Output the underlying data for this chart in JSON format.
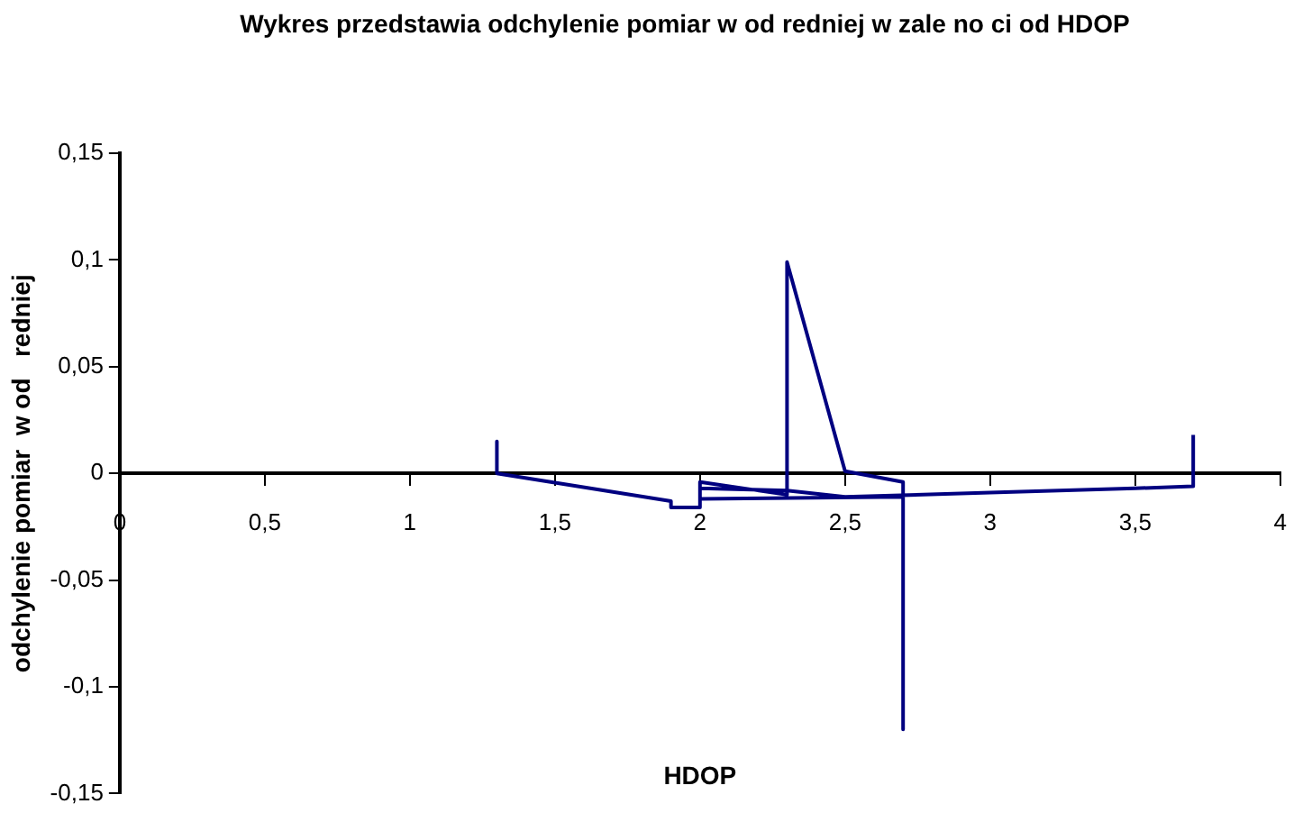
{
  "chart_data": {
    "type": "line",
    "title": "Wykres przedstawia odchylenie pomiar  w od   redniej w zale  no  ci od HDOP",
    "xlabel": "HDOP",
    "ylabel": "odchylenie pomiar  w od   redniej",
    "series": [
      {
        "color": "#000080",
        "x": [
          1.3,
          1.3,
          1.9,
          1.9,
          2.0,
          2.0,
          2.3,
          2.3,
          2.5,
          2.7,
          2.7,
          2.7,
          2.0,
          2.0,
          2.3,
          2.5,
          3.0,
          3.5,
          3.7,
          3.7
        ],
        "values": [
          0.015,
          0.0,
          -0.013,
          -0.016,
          -0.016,
          -0.004,
          -0.01,
          0.099,
          0.001,
          -0.004,
          -0.12,
          -0.011,
          -0.012,
          -0.007,
          -0.008,
          -0.011,
          -0.009,
          -0.007,
          -0.006,
          0.018
        ]
      }
    ],
    "xlim": [
      0,
      4
    ],
    "xticks": [
      0,
      {
        "value": 0.5,
        "label": "0,5"
      },
      1,
      {
        "value": 1.5,
        "label": "1,5"
      },
      2,
      {
        "value": 2.5,
        "label": "2,5"
      },
      3,
      {
        "value": 3.5,
        "label": "3,5"
      },
      4
    ],
    "ylim": [
      -0.15,
      0.15
    ],
    "yticks": [
      {
        "value": -0.15,
        "label": "-0,15"
      },
      {
        "value": -0.1,
        "label": "-0,1"
      },
      {
        "value": -0.05,
        "label": "-0,05"
      },
      0,
      {
        "value": 0.05,
        "label": "0,05"
      },
      {
        "value": 0.1,
        "label": "0,1"
      },
      {
        "value": 0.15,
        "label": "0,15"
      }
    ],
    "grid": false,
    "legend": false,
    "marker": "none",
    "line_style": "solid"
  }
}
